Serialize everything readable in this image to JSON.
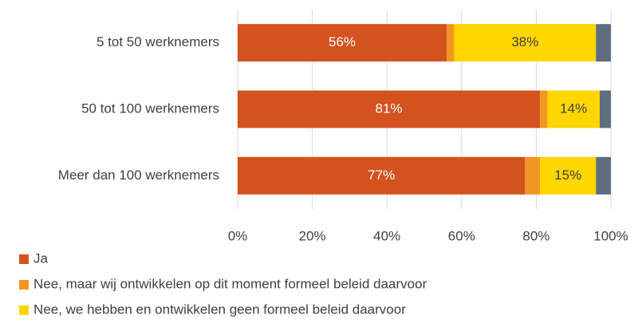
{
  "chart_data": {
    "type": "stacked-bar-horizontal",
    "categories": [
      "5 tot 50 werknemers",
      "50 tot 100 werknemers",
      "Meer dan 100 werknemers"
    ],
    "series": [
      {
        "name": "Ja",
        "color": "#d4521e",
        "values": [
          56,
          81,
          77
        ],
        "value_labels": [
          "56%",
          "81%",
          "77%"
        ]
      },
      {
        "name": "Nee, maar wij ontwikkelen op dit moment formeel beleid daarvoor",
        "color": "#f39524",
        "values": [
          2,
          2,
          4
        ]
      },
      {
        "name": "Nee, we hebben en ontwikkelen geen formeel beleid daarvoor",
        "color": "#ffd600",
        "values": [
          38,
          14,
          15
        ],
        "value_labels": [
          "38%",
          "14%",
          "15%"
        ]
      },
      {
        "color": "#5e6e7f",
        "values": [
          4,
          3,
          4
        ]
      }
    ],
    "xlim": [
      0,
      100
    ],
    "xticks": [
      {
        "value": 0,
        "label": "0%"
      },
      {
        "value": 20,
        "label": "20%"
      },
      {
        "value": 40,
        "label": "40%"
      },
      {
        "value": 60,
        "label": "60%"
      },
      {
        "value": 80,
        "label": "80%"
      },
      {
        "value": 100,
        "label": "100%"
      }
    ],
    "grid": true
  }
}
